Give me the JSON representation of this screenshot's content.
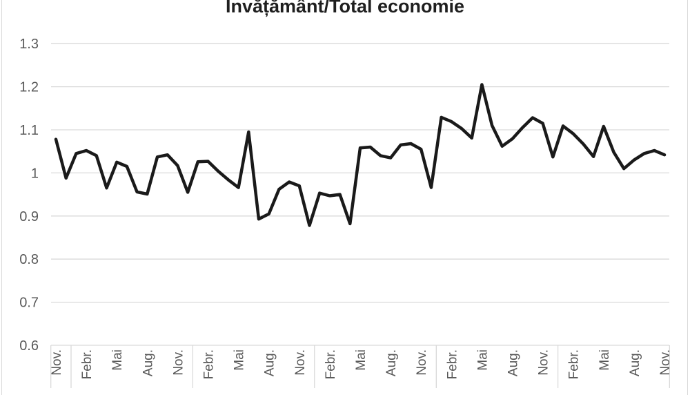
{
  "chart_data": {
    "type": "line",
    "title": "Învățământ/Total economie",
    "legend": "none",
    "grid": true,
    "ylim": [
      0.6,
      1.3
    ],
    "ytick_step": 0.1,
    "yticks_top_to_bottom": [
      "1.3",
      "1.2",
      "1.1",
      "1",
      "0.9",
      "0.8",
      "0.7",
      "0.6"
    ],
    "x_labels": [
      "Nov.",
      "Febr.",
      "Mai",
      "Aug.",
      "Nov.",
      "Febr.",
      "Mai",
      "Aug.",
      "Nov.",
      "Febr.",
      "Mai",
      "Aug.",
      "Nov.",
      "Febr.",
      "Mai",
      "Aug.",
      "Nov.",
      "Febr.",
      "Mai",
      "Aug.",
      "Nov."
    ],
    "x_label_every_n_points": 3,
    "values": [
      1.078,
      0.988,
      1.045,
      1.052,
      1.04,
      0.965,
      1.025,
      1.015,
      0.956,
      0.951,
      1.037,
      1.042,
      1.017,
      0.955,
      1.026,
      1.027,
      1.004,
      0.984,
      0.966,
      1.095,
      0.893,
      0.905,
      0.962,
      0.979,
      0.97,
      0.878,
      0.953,
      0.947,
      0.95,
      0.882,
      1.058,
      1.06,
      1.04,
      1.035,
      1.065,
      1.068,
      1.055,
      0.966,
      1.129,
      1.119,
      1.103,
      1.081,
      1.205,
      1.11,
      1.062,
      1.079,
      1.105,
      1.128,
      1.115,
      1.037,
      1.109,
      1.091,
      1.067,
      1.038,
      1.108,
      1.048,
      1.01,
      1.03,
      1.045,
      1.052,
      1.042
    ],
    "year_separator_positions": [
      -0.5,
      1.5,
      13.5,
      25.5,
      37.5,
      49.5,
      60.5
    ],
    "line_color": "#1a1a1a",
    "grid_color": "#d9d9d9",
    "axis_text_color": "#595959",
    "title_color": "#1f1f1f"
  }
}
